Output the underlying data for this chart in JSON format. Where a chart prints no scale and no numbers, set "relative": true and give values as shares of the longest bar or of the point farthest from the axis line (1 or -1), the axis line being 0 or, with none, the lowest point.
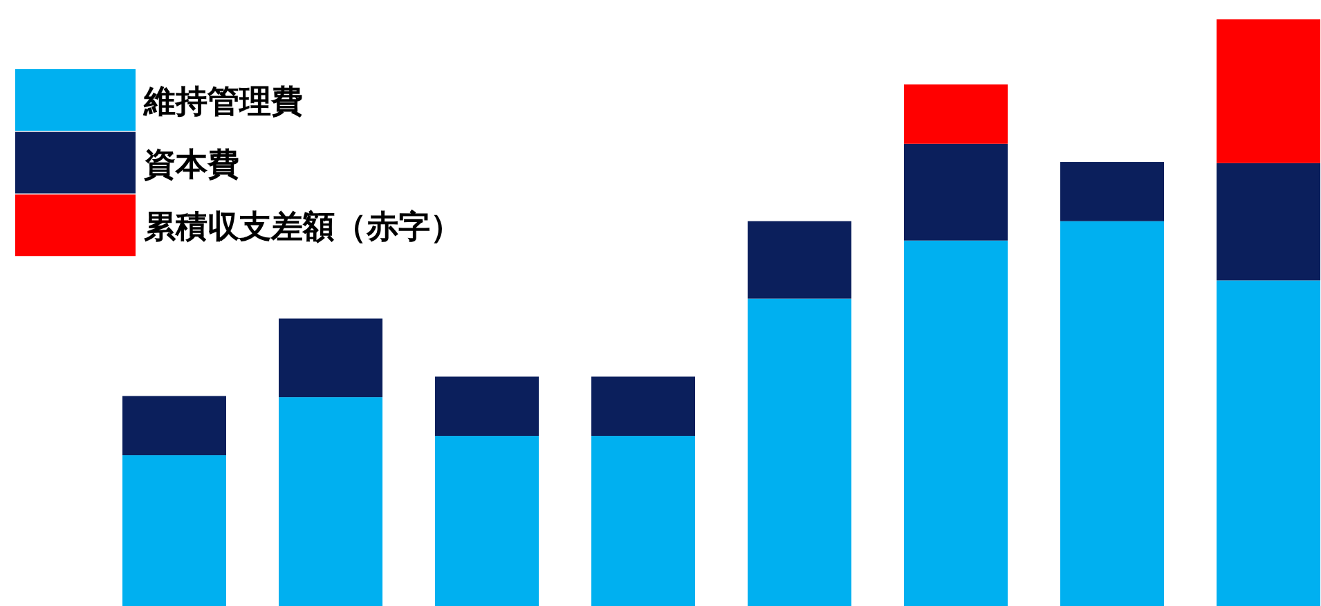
{
  "chart_data": {
    "type": "bar",
    "relative": true,
    "stacked": true,
    "legend": "top left",
    "categories": [
      null,
      null,
      null,
      null,
      null,
      null,
      null,
      null
    ],
    "series": [
      {
        "name": "維持管理費",
        "color": "#00b0f0",
        "values": [
          0.257,
          0.356,
          0.29,
          0.29,
          0.524,
          0.623,
          0.656,
          0.555
        ]
      },
      {
        "name": "資本費",
        "color": "#0b1f5c",
        "values": [
          0.101,
          0.134,
          0.101,
          0.101,
          0.132,
          0.165,
          0.101,
          0.2
        ]
      },
      {
        "name": "累積収支差額（赤字）",
        "color": "#ff0000",
        "values": [
          null,
          null,
          null,
          null,
          null,
          0.101,
          null,
          0.245
        ]
      }
    ]
  }
}
